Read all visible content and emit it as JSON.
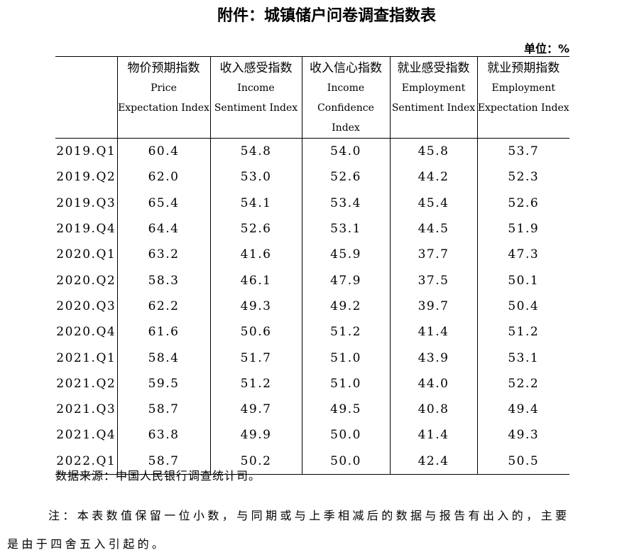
{
  "title": "附件：城镇储户问卷调查指数表",
  "unit": "单位：%",
  "table": {
    "columns": [
      {
        "zh": "物价预期指数",
        "en": [
          "Price",
          "Expectation Index"
        ]
      },
      {
        "zh": "收入感受指数",
        "en": [
          "Income",
          "Sentiment Index"
        ]
      },
      {
        "zh": "收入信心指数",
        "en": [
          "Income",
          "Confidence Index"
        ]
      },
      {
        "zh": "就业感受指数",
        "en": [
          "Employment",
          "Sentiment Index"
        ]
      },
      {
        "zh": "就业预期指数",
        "en": [
          "Employment",
          "Expectation Index"
        ]
      }
    ],
    "rows": [
      [
        "2019.Q1",
        "60.4",
        "54.8",
        "54.0",
        "45.8",
        "53.7"
      ],
      [
        "2019.Q2",
        "62.0",
        "53.0",
        "52.6",
        "44.2",
        "52.3"
      ],
      [
        "2019.Q3",
        "65.4",
        "54.1",
        "53.4",
        "45.4",
        "52.6"
      ],
      [
        "2019.Q4",
        "64.4",
        "52.6",
        "53.1",
        "44.5",
        "51.9"
      ],
      [
        "2020.Q1",
        "63.2",
        "41.6",
        "45.9",
        "37.7",
        "47.3"
      ],
      [
        "2020.Q2",
        "58.3",
        "46.1",
        "47.9",
        "37.5",
        "50.1"
      ],
      [
        "2020.Q3",
        "62.2",
        "49.3",
        "49.2",
        "39.7",
        "50.4"
      ],
      [
        "2020.Q4",
        "61.6",
        "50.6",
        "51.2",
        "41.4",
        "51.2"
      ],
      [
        "2021.Q1",
        "58.4",
        "51.7",
        "51.0",
        "43.9",
        "53.1"
      ],
      [
        "2021.Q2",
        "59.5",
        "51.2",
        "51.0",
        "44.0",
        "52.2"
      ],
      [
        "2021.Q3",
        "58.7",
        "49.7",
        "49.5",
        "40.8",
        "49.4"
      ],
      [
        "2021.Q4",
        "63.8",
        "49.9",
        "50.0",
        "41.4",
        "49.3"
      ],
      [
        "2022.Q1",
        "58.7",
        "50.2",
        "50.0",
        "42.4",
        "50.5"
      ]
    ]
  },
  "source": "数据来源：中国人民银行调查统计司。",
  "note": "注：本表数值保留一位小数，与同期或与上季相减后的数据与报告有出入的，主要是由于四舍五入引起的。"
}
